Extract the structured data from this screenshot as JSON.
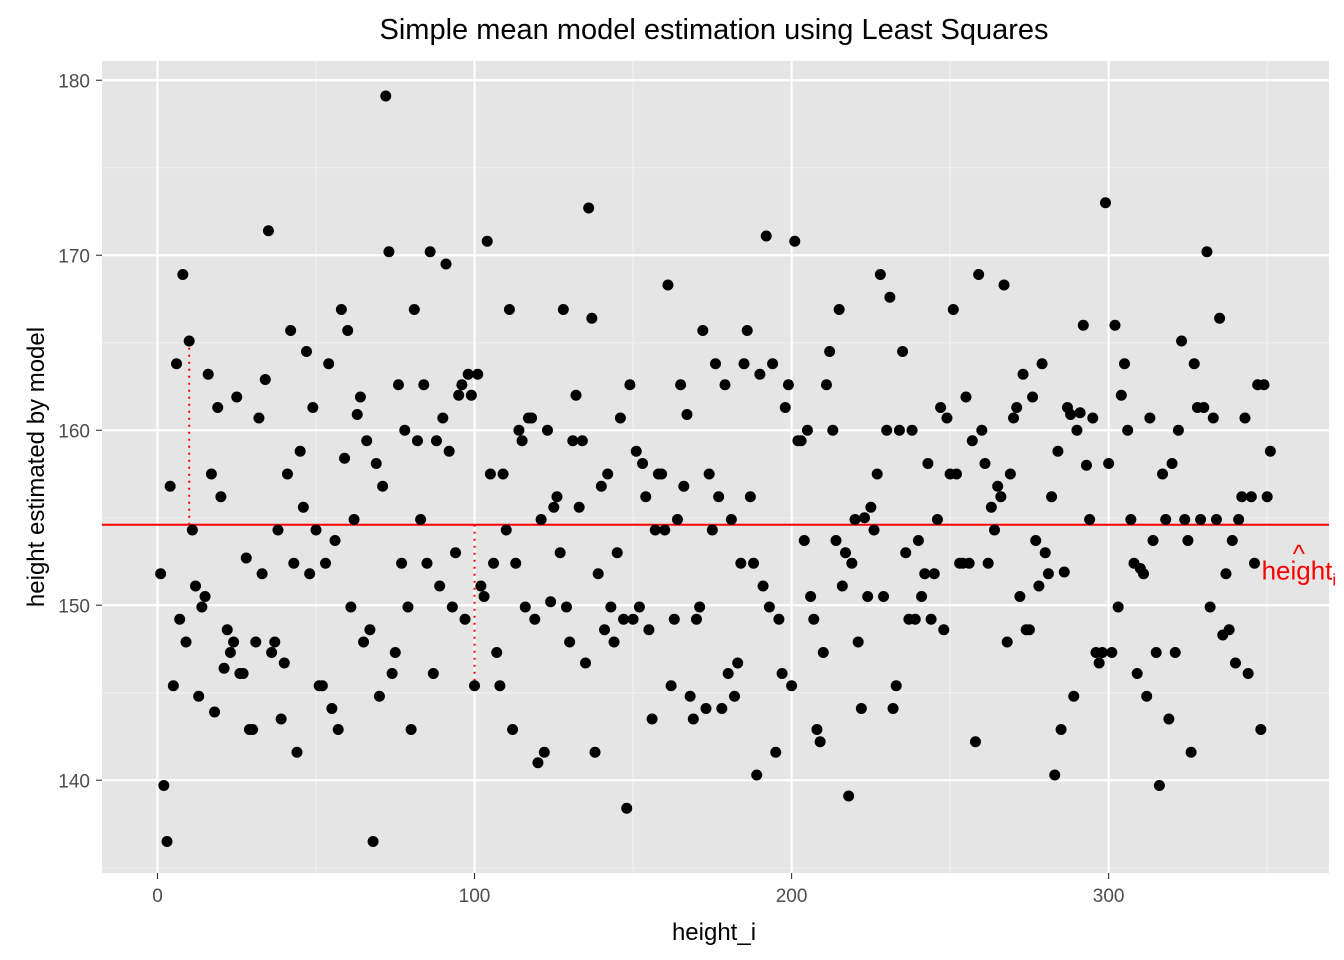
{
  "chart_data": {
    "type": "scatter",
    "title": "Simple mean model estimation using Least Squares",
    "xlabel": "height_i",
    "ylabel": "height estimated by model",
    "xlim": [
      -17.5,
      369.5
    ],
    "ylim": [
      134.7,
      181.1
    ],
    "x_ticks": [
      0,
      100,
      200,
      300
    ],
    "y_ticks": [
      140,
      150,
      160,
      170,
      180
    ],
    "grid": true,
    "background": "#e5e5e5",
    "point_color": "#000000",
    "mean_line": {
      "y": 154.6,
      "color": "#ff0000"
    },
    "residual_segments": [
      {
        "x": 10,
        "y_from": 154.6,
        "y_to": 165.1
      },
      {
        "x": 100,
        "y_from": 154.6,
        "y_to": 145.4
      }
    ],
    "annotation": {
      "text": "height",
      "hat": "^",
      "subscript": "i",
      "x": 360,
      "y": 152,
      "color": "#ff0000"
    },
    "points": [
      [
        1,
        151.8
      ],
      [
        2,
        139.7
      ],
      [
        3,
        136.5
      ],
      [
        4,
        156.8
      ],
      [
        5,
        145.4
      ],
      [
        6,
        163.8
      ],
      [
        7,
        149.2
      ],
      [
        8,
        168.9
      ],
      [
        9,
        147.9
      ],
      [
        10,
        165.1
      ],
      [
        11,
        154.3
      ],
      [
        12,
        151.1
      ],
      [
        13,
        144.8
      ],
      [
        14,
        149.9
      ],
      [
        15,
        150.5
      ],
      [
        16,
        163.2
      ],
      [
        17,
        157.5
      ],
      [
        18,
        143.9
      ],
      [
        19,
        161.3
      ],
      [
        20,
        156.2
      ],
      [
        21,
        146.4
      ],
      [
        22,
        148.6
      ],
      [
        23,
        147.3
      ],
      [
        24,
        147.9
      ],
      [
        25,
        161.9
      ],
      [
        26,
        146.1
      ],
      [
        27,
        146.1
      ],
      [
        28,
        152.7
      ],
      [
        29,
        142.9
      ],
      [
        30,
        142.9
      ],
      [
        31,
        147.9
      ],
      [
        32,
        160.7
      ],
      [
        33,
        151.8
      ],
      [
        34,
        162.9
      ],
      [
        35,
        171.4
      ],
      [
        36,
        147.3
      ],
      [
        37,
        147.9
      ],
      [
        38,
        154.3
      ],
      [
        39,
        143.5
      ],
      [
        40,
        146.7
      ],
      [
        41,
        157.5
      ],
      [
        42,
        165.7
      ],
      [
        43,
        152.4
      ],
      [
        44,
        141.6
      ],
      [
        45,
        158.8
      ],
      [
        46,
        155.6
      ],
      [
        47,
        164.5
      ],
      [
        48,
        151.8
      ],
      [
        49,
        161.3
      ],
      [
        50,
        154.3
      ],
      [
        51,
        145.4
      ],
      [
        52,
        145.4
      ],
      [
        53,
        152.4
      ],
      [
        54,
        163.8
      ],
      [
        55,
        144.1
      ],
      [
        56,
        153.7
      ],
      [
        57,
        142.9
      ],
      [
        58,
        166.9
      ],
      [
        59,
        158.4
      ],
      [
        60,
        165.7
      ],
      [
        61,
        149.9
      ],
      [
        62,
        154.9
      ],
      [
        63,
        160.9
      ],
      [
        64,
        161.9
      ],
      [
        65,
        147.9
      ],
      [
        66,
        159.4
      ],
      [
        67,
        148.6
      ],
      [
        68,
        136.5
      ],
      [
        69,
        158.1
      ],
      [
        70,
        144.8
      ],
      [
        71,
        156.8
      ],
      [
        72,
        179.1
      ],
      [
        73,
        170.2
      ],
      [
        74,
        146.1
      ],
      [
        75,
        147.3
      ],
      [
        76,
        162.6
      ],
      [
        77,
        152.4
      ],
      [
        78,
        160.0
      ],
      [
        79,
        149.9
      ],
      [
        80,
        142.9
      ],
      [
        81,
        166.9
      ],
      [
        82,
        159.4
      ],
      [
        83,
        154.9
      ],
      [
        84,
        162.6
      ],
      [
        85,
        152.4
      ],
      [
        86,
        170.2
      ],
      [
        87,
        146.1
      ],
      [
        88,
        159.4
      ],
      [
        89,
        151.1
      ],
      [
        90,
        160.7
      ],
      [
        91,
        169.5
      ],
      [
        92,
        158.8
      ],
      [
        93,
        149.9
      ],
      [
        94,
        153.0
      ],
      [
        95,
        162.0
      ],
      [
        96,
        162.6
      ],
      [
        97,
        149.2
      ],
      [
        98,
        163.2
      ],
      [
        99,
        162.0
      ],
      [
        100,
        145.4
      ],
      [
        101,
        163.2
      ],
      [
        102,
        151.1
      ],
      [
        103,
        150.5
      ],
      [
        104,
        170.8
      ],
      [
        105,
        157.5
      ],
      [
        106,
        152.4
      ],
      [
        107,
        147.3
      ],
      [
        108,
        145.4
      ],
      [
        109,
        157.5
      ],
      [
        110,
        154.3
      ],
      [
        111,
        166.9
      ],
      [
        112,
        142.9
      ],
      [
        113,
        152.4
      ],
      [
        114,
        160.0
      ],
      [
        115,
        159.4
      ],
      [
        116,
        149.9
      ],
      [
        117,
        160.7
      ],
      [
        118,
        160.7
      ],
      [
        119,
        149.2
      ],
      [
        120,
        141.0
      ],
      [
        121,
        154.9
      ],
      [
        122,
        141.6
      ],
      [
        123,
        160.0
      ],
      [
        124,
        150.2
      ],
      [
        125,
        155.6
      ],
      [
        126,
        156.2
      ],
      [
        127,
        153.0
      ],
      [
        128,
        166.9
      ],
      [
        129,
        149.9
      ],
      [
        130,
        147.9
      ],
      [
        131,
        159.4
      ],
      [
        132,
        162.0
      ],
      [
        133,
        155.6
      ],
      [
        134,
        159.4
      ],
      [
        135,
        146.7
      ],
      [
        136,
        172.7
      ],
      [
        137,
        166.4
      ],
      [
        138,
        141.6
      ],
      [
        139,
        151.8
      ],
      [
        140,
        156.8
      ],
      [
        141,
        148.6
      ],
      [
        142,
        157.5
      ],
      [
        143,
        149.9
      ],
      [
        144,
        147.9
      ],
      [
        145,
        153.0
      ],
      [
        146,
        160.7
      ],
      [
        147,
        149.2
      ],
      [
        148,
        138.4
      ],
      [
        149,
        162.6
      ],
      [
        150,
        149.2
      ],
      [
        151,
        158.8
      ],
      [
        152,
        149.9
      ],
      [
        153,
        158.1
      ],
      [
        154,
        156.2
      ],
      [
        155,
        148.6
      ],
      [
        156,
        143.5
      ],
      [
        157,
        154.3
      ],
      [
        158,
        157.5
      ],
      [
        159,
        157.5
      ],
      [
        160,
        154.3
      ],
      [
        161,
        168.3
      ],
      [
        162,
        145.4
      ],
      [
        163,
        149.2
      ],
      [
        164,
        154.9
      ],
      [
        165,
        162.6
      ],
      [
        166,
        156.8
      ],
      [
        167,
        160.9
      ],
      [
        168,
        144.8
      ],
      [
        169,
        143.5
      ],
      [
        170,
        149.2
      ],
      [
        171,
        149.9
      ],
      [
        172,
        165.7
      ],
      [
        173,
        144.1
      ],
      [
        174,
        157.5
      ],
      [
        175,
        154.3
      ],
      [
        176,
        163.8
      ],
      [
        177,
        156.2
      ],
      [
        178,
        144.1
      ],
      [
        179,
        162.6
      ],
      [
        180,
        146.1
      ],
      [
        181,
        154.9
      ],
      [
        182,
        144.8
      ],
      [
        183,
        146.7
      ],
      [
        184,
        152.4
      ],
      [
        185,
        163.8
      ],
      [
        186,
        165.7
      ],
      [
        187,
        156.2
      ],
      [
        188,
        152.4
      ],
      [
        189,
        140.3
      ],
      [
        190,
        163.2
      ],
      [
        191,
        151.1
      ],
      [
        192,
        171.1
      ],
      [
        193,
        149.9
      ],
      [
        194,
        163.8
      ],
      [
        195,
        141.6
      ],
      [
        196,
        149.2
      ],
      [
        197,
        146.1
      ],
      [
        198,
        161.3
      ],
      [
        199,
        162.6
      ],
      [
        200,
        145.4
      ],
      [
        201,
        170.8
      ],
      [
        202,
        159.4
      ],
      [
        203,
        159.4
      ],
      [
        204,
        153.7
      ],
      [
        205,
        160.0
      ],
      [
        206,
        150.5
      ],
      [
        207,
        149.2
      ],
      [
        208,
        142.9
      ],
      [
        209,
        142.2
      ],
      [
        210,
        147.3
      ],
      [
        211,
        162.6
      ],
      [
        212,
        164.5
      ],
      [
        213,
        160.0
      ],
      [
        214,
        153.7
      ],
      [
        215,
        166.9
      ],
      [
        216,
        151.1
      ],
      [
        217,
        153.0
      ],
      [
        218,
        139.1
      ],
      [
        219,
        152.4
      ],
      [
        220,
        154.9
      ],
      [
        221,
        147.9
      ],
      [
        222,
        144.1
      ],
      [
        223,
        155.0
      ],
      [
        224,
        150.5
      ],
      [
        225,
        155.6
      ],
      [
        226,
        154.3
      ],
      [
        227,
        157.5
      ],
      [
        228,
        168.9
      ],
      [
        229,
        150.5
      ],
      [
        230,
        160.0
      ],
      [
        231,
        167.6
      ],
      [
        232,
        144.1
      ],
      [
        233,
        145.4
      ],
      [
        234,
        160.0
      ],
      [
        235,
        164.5
      ],
      [
        236,
        153.0
      ],
      [
        237,
        149.2
      ],
      [
        238,
        160.0
      ],
      [
        239,
        149.2
      ],
      [
        240,
        153.7
      ],
      [
        241,
        150.5
      ],
      [
        242,
        151.8
      ],
      [
        243,
        158.1
      ],
      [
        244,
        149.2
      ],
      [
        245,
        151.8
      ],
      [
        246,
        154.9
      ],
      [
        247,
        161.3
      ],
      [
        248,
        148.6
      ],
      [
        249,
        160.7
      ],
      [
        250,
        157.5
      ],
      [
        251,
        166.9
      ],
      [
        252,
        157.5
      ],
      [
        253,
        152.4
      ],
      [
        254,
        152.4
      ],
      [
        255,
        161.9
      ],
      [
        256,
        152.4
      ],
      [
        257,
        159.4
      ],
      [
        258,
        142.2
      ],
      [
        259,
        168.9
      ],
      [
        260,
        160.0
      ],
      [
        261,
        158.1
      ],
      [
        262,
        152.4
      ],
      [
        263,
        155.6
      ],
      [
        264,
        154.3
      ],
      [
        265,
        156.8
      ],
      [
        266,
        156.2
      ],
      [
        267,
        168.3
      ],
      [
        268,
        147.9
      ],
      [
        269,
        157.5
      ],
      [
        270,
        160.7
      ],
      [
        271,
        161.3
      ],
      [
        272,
        150.5
      ],
      [
        273,
        163.2
      ],
      [
        274,
        148.6
      ],
      [
        275,
        148.6
      ],
      [
        276,
        161.9
      ],
      [
        277,
        153.7
      ],
      [
        278,
        151.1
      ],
      [
        279,
        163.8
      ],
      [
        280,
        153.0
      ],
      [
        281,
        151.8
      ],
      [
        282,
        156.2
      ],
      [
        283,
        140.3
      ],
      [
        284,
        158.8
      ],
      [
        285,
        142.9
      ],
      [
        286,
        151.9
      ],
      [
        287,
        161.3
      ],
      [
        288,
        160.9
      ],
      [
        289,
        144.8
      ],
      [
        290,
        160.0
      ],
      [
        291,
        161.0
      ],
      [
        292,
        166.0
      ],
      [
        293,
        158.0
      ],
      [
        294,
        154.9
      ],
      [
        295,
        160.7
      ],
      [
        296,
        147.3
      ],
      [
        297,
        146.7
      ],
      [
        298,
        147.3
      ],
      [
        299,
        173.0
      ],
      [
        300,
        158.1
      ],
      [
        301,
        147.3
      ],
      [
        302,
        166.0
      ],
      [
        303,
        149.9
      ],
      [
        304,
        162.0
      ],
      [
        305,
        163.8
      ],
      [
        306,
        160.0
      ],
      [
        307,
        154.9
      ],
      [
        308,
        152.4
      ],
      [
        309,
        146.1
      ],
      [
        310,
        152.1
      ],
      [
        311,
        151.8
      ],
      [
        312,
        144.8
      ],
      [
        313,
        160.7
      ],
      [
        314,
        153.7
      ],
      [
        315,
        147.3
      ],
      [
        316,
        139.7
      ],
      [
        317,
        157.5
      ],
      [
        318,
        154.9
      ],
      [
        319,
        143.5
      ],
      [
        320,
        158.1
      ],
      [
        321,
        147.3
      ],
      [
        322,
        160.0
      ],
      [
        323,
        165.1
      ],
      [
        324,
        154.9
      ],
      [
        325,
        153.7
      ],
      [
        326,
        141.6
      ],
      [
        327,
        163.8
      ],
      [
        328,
        161.3
      ],
      [
        329,
        154.9
      ],
      [
        330,
        161.3
      ],
      [
        331,
        170.2
      ],
      [
        332,
        149.9
      ],
      [
        333,
        160.7
      ],
      [
        334,
        154.9
      ],
      [
        335,
        166.4
      ],
      [
        336,
        148.3
      ],
      [
        337,
        151.8
      ],
      [
        338,
        148.6
      ],
      [
        339,
        153.7
      ],
      [
        340,
        146.7
      ],
      [
        341,
        154.9
      ],
      [
        342,
        156.2
      ],
      [
        343,
        160.7
      ],
      [
        344,
        146.1
      ],
      [
        345,
        156.2
      ],
      [
        346,
        152.4
      ],
      [
        347,
        162.6
      ],
      [
        348,
        142.9
      ],
      [
        349,
        162.6
      ],
      [
        350,
        156.2
      ],
      [
        351,
        158.8
      ]
    ]
  }
}
